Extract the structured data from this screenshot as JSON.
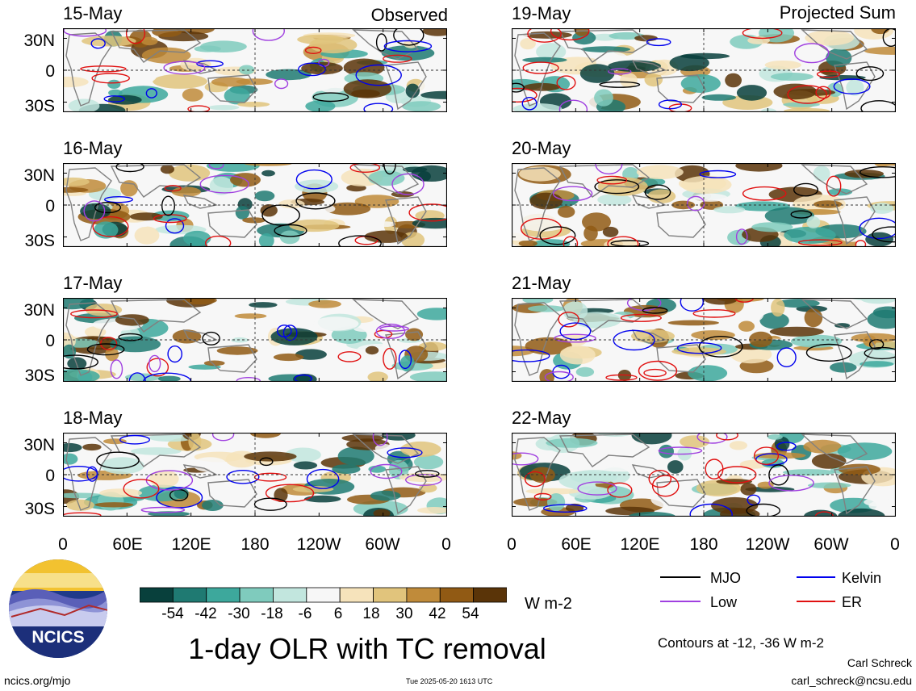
{
  "observed": {
    "header": "Observed",
    "panels": [
      {
        "date": "15-May"
      },
      {
        "date": "16-May"
      },
      {
        "date": "17-May"
      },
      {
        "date": "18-May"
      }
    ]
  },
  "projected": {
    "header": "Projected Sum",
    "panels": [
      {
        "date": "19-May"
      },
      {
        "date": "20-May"
      },
      {
        "date": "21-May"
      },
      {
        "date": "22-May"
      }
    ]
  },
  "axes": {
    "lat_labels": [
      "30N",
      "0",
      "30S"
    ],
    "lon_labels": [
      "0",
      "60E",
      "120E",
      "180",
      "120W",
      "60W",
      "0"
    ]
  },
  "colorbar": {
    "unit": "W m-2",
    "labels": [
      "-54",
      "-42",
      "-30",
      "-18",
      "-6",
      "6",
      "18",
      "30",
      "42",
      "54"
    ],
    "colors": [
      "#08403c",
      "#1f7a72",
      "#3da89c",
      "#7fcbbd",
      "#c2e6de",
      "#f7f7f7",
      "#f6e3bb",
      "#e1c47c",
      "#c08b3a",
      "#915a14",
      "#5a3408"
    ]
  },
  "legend": {
    "items": [
      {
        "label": "MJO",
        "color": "#000000"
      },
      {
        "label": "Kelvin",
        "color": "#0000ee"
      },
      {
        "label": "Low",
        "color": "#a040e0"
      },
      {
        "label": "ER",
        "color": "#e01010"
      }
    ],
    "contours_note": "Contours at -12, -36 W m-2"
  },
  "title": "1-day OLR with TC removal",
  "logo_text": "NCICS",
  "footer": {
    "site": "ncics.org/mjo",
    "timestamp": "Tue 2025-05-20 1613 UTC",
    "author": "Carl Schreck",
    "email": "carl_schreck@ncsu.edu"
  }
}
